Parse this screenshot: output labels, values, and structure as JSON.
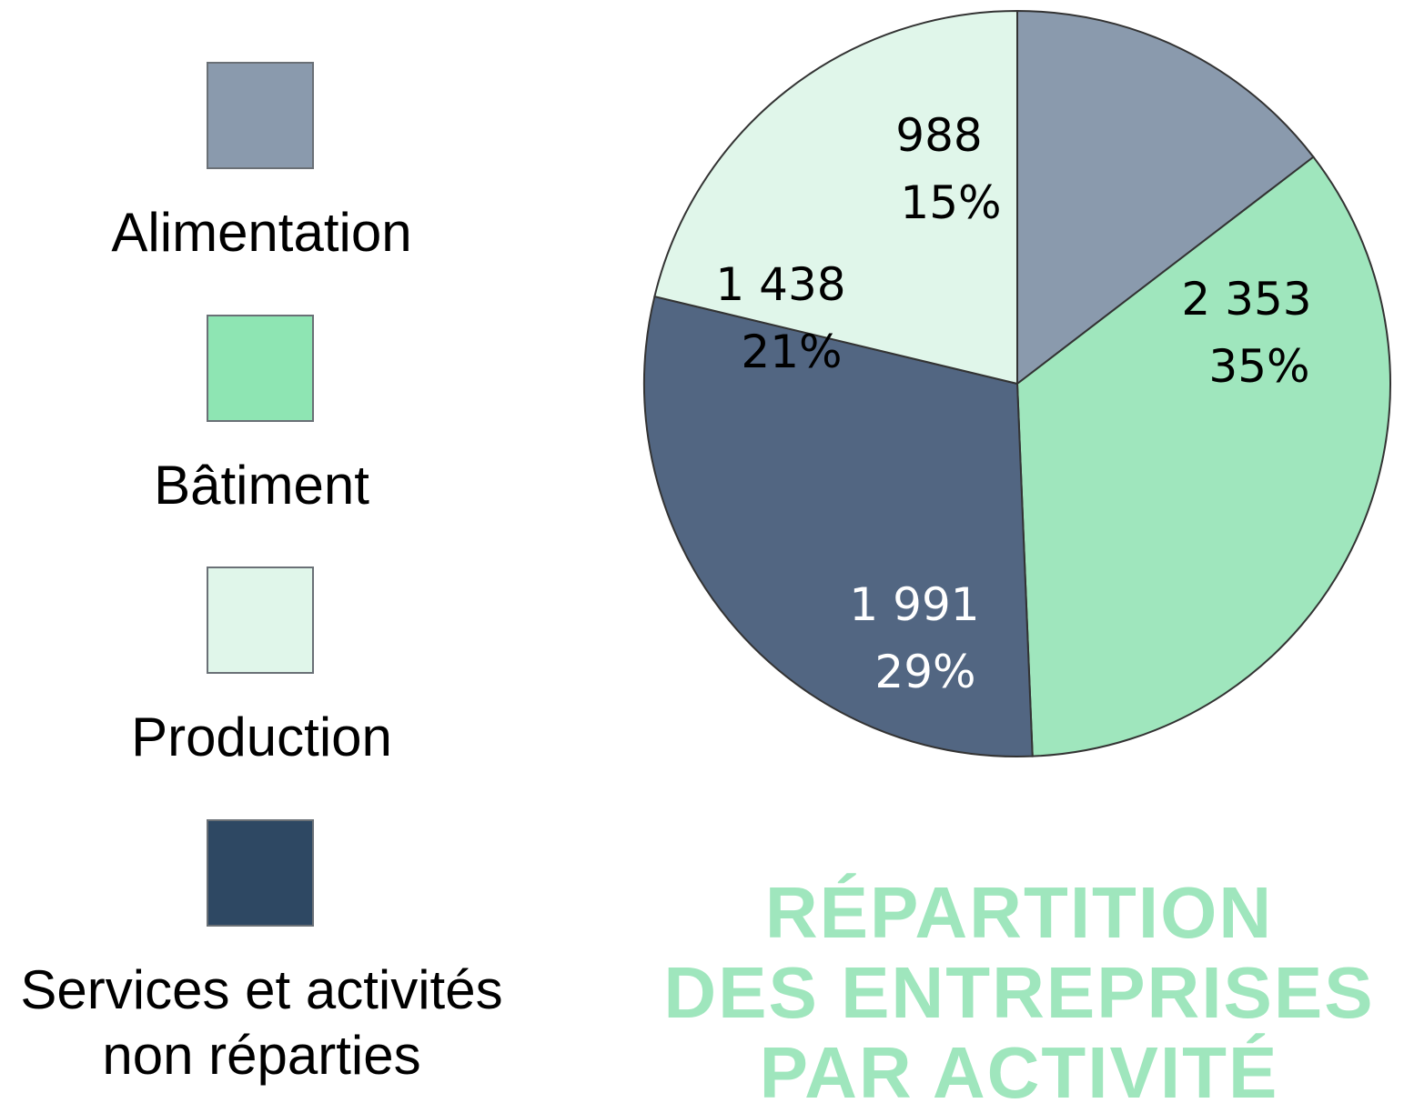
{
  "chart_data": {
    "type": "pie",
    "title": [
      "RÉPARTITION",
      "DES ENTREPRISES",
      "PAR ACTIVITÉ"
    ],
    "title_color": "#9fe6bd",
    "legend_position": "left",
    "slices": [
      {
        "name": "Alimentation",
        "value": 988,
        "value_label": "988",
        "percent_label": "15%",
        "color": "#8a9aad",
        "label_color": "#000000"
      },
      {
        "name": "Bâtiment",
        "value": 2353,
        "value_label": "2 353",
        "percent_label": "35%",
        "color": "#9fe6bd",
        "label_color": "#000000"
      },
      {
        "name": "Services et activités\nnon réparties",
        "value": 1991,
        "value_label": "1 991",
        "percent_label": "29%",
        "color": "#526682",
        "label_color": "#ffffff"
      },
      {
        "name": "Production",
        "value": 1438,
        "value_label": "1 438",
        "percent_label": "21%",
        "color": "#e0f6ea",
        "label_color": "#000000"
      }
    ],
    "legend": [
      {
        "name": "Alimentation",
        "color": "#8a9aad"
      },
      {
        "name": "Bâtiment",
        "color": "#8ee5b3"
      },
      {
        "name": "Production",
        "color": "#e0f6ea"
      },
      {
        "name": "Services et activités\nnon réparties",
        "color": "#2e4863"
      }
    ]
  }
}
